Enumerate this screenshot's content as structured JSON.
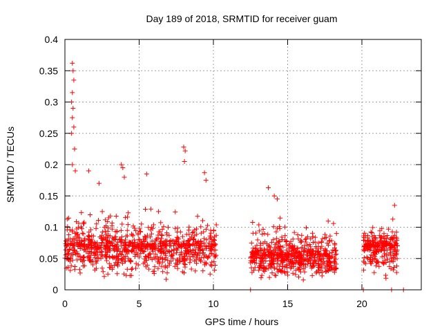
{
  "chart_data": {
    "type": "scatter",
    "title": "Day 189 of 2018, SRMTID for receiver guam",
    "xlabel": "GPS time / hours",
    "ylabel": "SRMTID / TECUs",
    "xlim": [
      0,
      24
    ],
    "ylim": [
      0,
      0.4
    ],
    "xticks": [
      0,
      5,
      10,
      15,
      20
    ],
    "yticks": [
      0,
      0.05,
      0.1,
      0.15,
      0.2,
      0.25,
      0.3,
      0.35,
      0.4
    ],
    "ytick_labels": [
      "0",
      "0.05",
      "0.1",
      "0.15",
      "0.2",
      "0.25",
      "0.3",
      "0.35",
      "0.4"
    ],
    "grid": true,
    "marker": "+",
    "color": "#ff0000",
    "series": [
      {
        "name": "SRMTID",
        "segments": [
          {
            "x_start": 0.0,
            "x_end": 10.2,
            "y_min": 0.01,
            "y_typ": 0.07,
            "y_max": 0.15,
            "n": 900
          },
          {
            "x_start": 12.5,
            "x_end": 18.3,
            "y_min": 0.01,
            "y_typ": 0.055,
            "y_max": 0.13,
            "n": 600
          },
          {
            "x_start": 20.1,
            "x_end": 22.4,
            "y_min": 0.01,
            "y_typ": 0.07,
            "y_max": 0.13,
            "n": 250
          }
        ],
        "highlights": [
          {
            "x": 0.5,
            "y": 0.362
          },
          {
            "x": 0.55,
            "y": 0.35
          },
          {
            "x": 0.6,
            "y": 0.335
          },
          {
            "x": 0.5,
            "y": 0.315
          },
          {
            "x": 0.45,
            "y": 0.3
          },
          {
            "x": 0.55,
            "y": 0.29
          },
          {
            "x": 0.5,
            "y": 0.275
          },
          {
            "x": 0.6,
            "y": 0.26
          },
          {
            "x": 0.45,
            "y": 0.25
          },
          {
            "x": 0.65,
            "y": 0.225
          },
          {
            "x": 0.5,
            "y": 0.2
          },
          {
            "x": 0.7,
            "y": 0.19
          },
          {
            "x": 8.0,
            "y": 0.228
          },
          {
            "x": 8.1,
            "y": 0.222
          },
          {
            "x": 8.05,
            "y": 0.205
          },
          {
            "x": 3.8,
            "y": 0.2
          },
          {
            "x": 3.9,
            "y": 0.195
          },
          {
            "x": 4.0,
            "y": 0.18
          },
          {
            "x": 1.6,
            "y": 0.19
          },
          {
            "x": 2.3,
            "y": 0.17
          },
          {
            "x": 5.5,
            "y": 0.185
          },
          {
            "x": 9.4,
            "y": 0.187
          },
          {
            "x": 9.5,
            "y": 0.175
          },
          {
            "x": 13.7,
            "y": 0.163
          },
          {
            "x": 14.1,
            "y": 0.15
          },
          {
            "x": 14.3,
            "y": 0.145
          },
          {
            "x": 22.2,
            "y": 0.135
          },
          {
            "x": 12.5,
            "y": 0.0
          },
          {
            "x": 20.1,
            "y": 0.0
          },
          {
            "x": 22.0,
            "y": 0.0
          },
          {
            "x": 22.8,
            "y": 0.0
          }
        ]
      }
    ]
  }
}
